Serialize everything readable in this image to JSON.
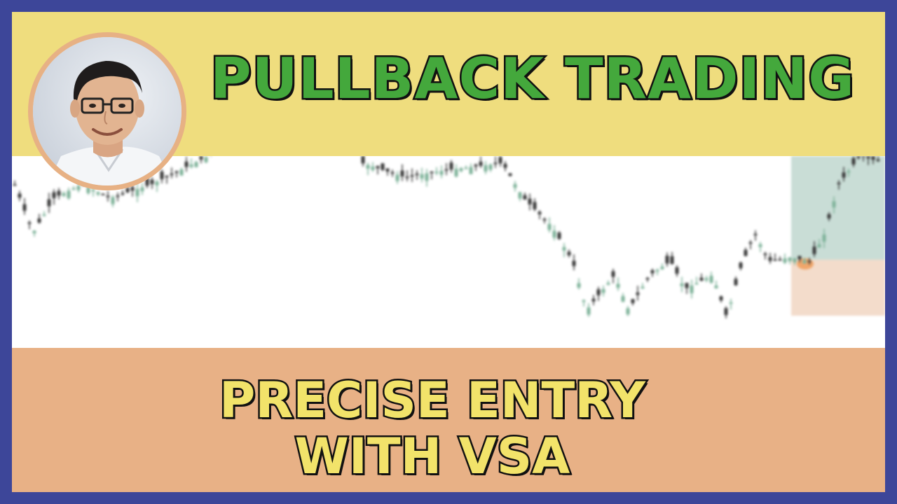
{
  "thumbnail": {
    "title": "PULLBACK TRADING",
    "subtitle_line1": "PRECISE ENTRY",
    "subtitle_line2": "WITH VSA",
    "avatar_icon": "presenter-portrait",
    "colors": {
      "border": "#3d4699",
      "top_band": "#efdd7e",
      "bottom_band": "#e8b186",
      "title_fill": "#44a83c",
      "subtitle_fill": "#f2e36a",
      "outline": "#111111",
      "candle_up": "#7fb39a",
      "candle_down": "#3a3a3a",
      "target_zone": "#c9ddd6",
      "stop_zone": "#f3dccb"
    }
  }
}
